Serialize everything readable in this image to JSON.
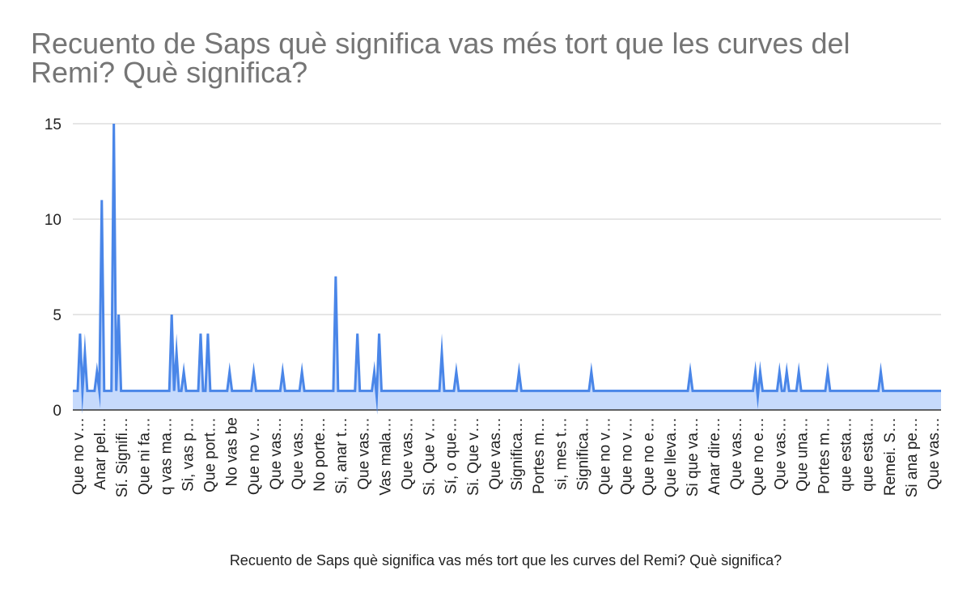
{
  "title_lines": [
    "Recuento de Saps què significa vas més tort que les curves del",
    "Remi? Què significa?"
  ],
  "colors": {
    "line": "#4a86e8",
    "fill": "#c6dafc",
    "grid": "#cccccc",
    "axis": "#333333"
  },
  "chart_data": {
    "type": "area",
    "title": "Recuento de Saps què significa vas més tort que les curves del Remi? Què significa?",
    "xlabel": "Recuento de Saps què significa vas més tort que les curves del Remi? Què significa?",
    "ylabel": "",
    "ylim": [
      0,
      15
    ],
    "yticks": [
      0,
      5,
      10,
      15
    ],
    "grid": true,
    "legend": "none",
    "tick_labels": [
      "Que no v…",
      "Anar pel…",
      "Sí. Signifi…",
      "Que ni fa…",
      "q vas ma…",
      "Si, vas p…",
      "Que port…",
      "No vas be",
      "Que no v…",
      "Que vas…",
      "Que vas…",
      "No porte…",
      "Si, anar t…",
      "Que vas…",
      "Vas mala…",
      "Que vas…",
      "Si. Que v…",
      "Sí, o que…",
      "Si. Que v…",
      "Que vas…",
      "Significa…",
      "Portes m…",
      "si, mes t…",
      "Significa…",
      "Que no v…",
      "Que no v…",
      "Que no e…",
      "Que lleva…",
      "Si que va…",
      "Anar dire…",
      "Que vas…",
      "Que no e…",
      "Que vas…",
      "Que una…",
      "Portes m…",
      "que esta…",
      "que esta…",
      "Remei. S…",
      "Si ana pe…",
      "Que vas…"
    ],
    "values": [
      1,
      1,
      1,
      4,
      1,
      3,
      1,
      1,
      1,
      1,
      2,
      1,
      11,
      1,
      1,
      1,
      1,
      15,
      1,
      5,
      1,
      1,
      1,
      1,
      1,
      1,
      1,
      1,
      1,
      1,
      1,
      1,
      1,
      1,
      1,
      1,
      1,
      1,
      1,
      1,
      1,
      5,
      1,
      3,
      1,
      1,
      2,
      1,
      1,
      1,
      1,
      1,
      1,
      4,
      1,
      1,
      4,
      1,
      1,
      1,
      1,
      1,
      1,
      1,
      1,
      2,
      1,
      1,
      1,
      1,
      1,
      1,
      1,
      1,
      1,
      2,
      1,
      1,
      1,
      1,
      1,
      1,
      1,
      1,
      1,
      1,
      1,
      2,
      1,
      1,
      1,
      1,
      1,
      1,
      1,
      2,
      1,
      1,
      1,
      1,
      1,
      1,
      1,
      1,
      1,
      1,
      1,
      1,
      1,
      7,
      1,
      1,
      1,
      1,
      1,
      1,
      1,
      1,
      4,
      1,
      1,
      1,
      1,
      1,
      1,
      2,
      0.7,
      4,
      1,
      1,
      1,
      1,
      1,
      1,
      1,
      1,
      1,
      1,
      1,
      1,
      1,
      1,
      1,
      1,
      1,
      1,
      1,
      1,
      1,
      1,
      1,
      1,
      1,
      3,
      1,
      1,
      1,
      1,
      1,
      2,
      1,
      1,
      1,
      1,
      1,
      1,
      1,
      1,
      1,
      1,
      1,
      1,
      1,
      1,
      1,
      1,
      1,
      1,
      1,
      1,
      1,
      1,
      1,
      1,
      1,
      2,
      1,
      1,
      1,
      1,
      1,
      1,
      1,
      1,
      1,
      1,
      1,
      1,
      1,
      1,
      1,
      1,
      1,
      1,
      1,
      1,
      1,
      1,
      1,
      1,
      1,
      1,
      1,
      1,
      1,
      2,
      1,
      1,
      1,
      1,
      1,
      1,
      1,
      1,
      1,
      1,
      1,
      1,
      1,
      1,
      1,
      1,
      1,
      1,
      1,
      1,
      1,
      1,
      1,
      1,
      1,
      1,
      1,
      1,
      1,
      1,
      1,
      1,
      1,
      1,
      1,
      1,
      1,
      1,
      1,
      1,
      2,
      1,
      1,
      1,
      1,
      1,
      1,
      1,
      1,
      1,
      1,
      1,
      1,
      1,
      1,
      1,
      1,
      1,
      1,
      1,
      1,
      1,
      1,
      1,
      1,
      1,
      1,
      2,
      0.7,
      2,
      1,
      1,
      1,
      1,
      1,
      1,
      1,
      2,
      1,
      1,
      2,
      1,
      1,
      1,
      1,
      2,
      1,
      1,
      1,
      1,
      1,
      1,
      1,
      1,
      1,
      1,
      1,
      2,
      1,
      1,
      1,
      1,
      1,
      1,
      1,
      1,
      1,
      1,
      1,
      1,
      1,
      1,
      1,
      1,
      1,
      1,
      1,
      1,
      1,
      2,
      1,
      1,
      1,
      1,
      1,
      1,
      1,
      1,
      1,
      1,
      1,
      1,
      1,
      1,
      1,
      1,
      1,
      1,
      1,
      1,
      1,
      1,
      1,
      1,
      1
    ]
  }
}
